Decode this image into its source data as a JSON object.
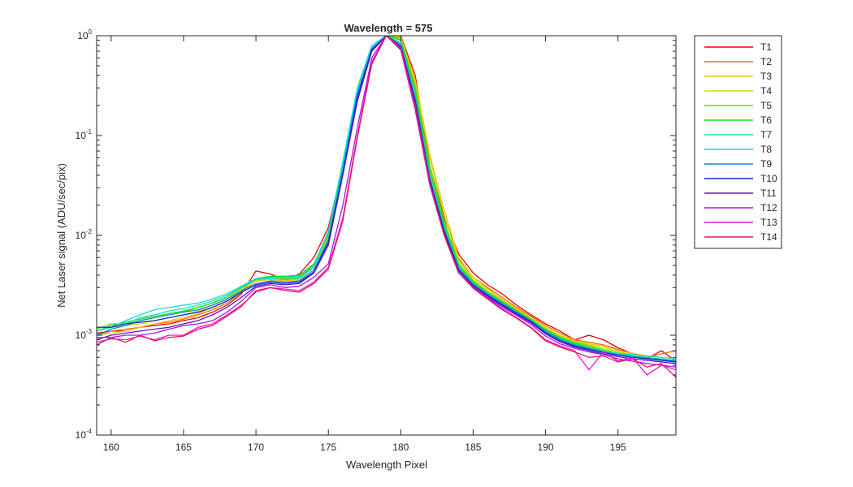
{
  "chart_data": {
    "type": "line",
    "title": "Wavelength = 575",
    "xlabel": "Wavelength Pixel",
    "ylabel": "Net Laser signal  (ADU/sec/pix)",
    "xlim": [
      159,
      199
    ],
    "ylim": [
      0.0001,
      1
    ],
    "yscale": "log",
    "grid": false,
    "legend_position": "outside-top-right",
    "xticks": [
      160,
      165,
      170,
      175,
      180,
      185,
      190,
      195
    ],
    "xtick_labels": [
      "160",
      "165",
      "170",
      "175",
      "180",
      "185",
      "190",
      "195"
    ],
    "yticks": [
      0.0001,
      0.001,
      0.01,
      0.1,
      1
    ],
    "ytick_labels": [
      {
        "base": "10",
        "exp": "-4"
      },
      {
        "base": "10",
        "exp": "-3"
      },
      {
        "base": "10",
        "exp": "-2"
      },
      {
        "base": "10",
        "exp": "-1"
      },
      {
        "base": "10",
        "exp": "0"
      }
    ],
    "x": [
      159,
      160,
      161,
      162,
      163,
      164,
      165,
      166,
      167,
      168,
      169,
      170,
      171,
      172,
      173,
      174,
      175,
      176,
      177,
      178,
      179,
      180,
      181,
      182,
      183,
      184,
      185,
      186,
      187,
      188,
      189,
      190,
      191,
      192,
      193,
      194,
      195,
      196,
      197,
      198,
      199
    ],
    "series": [
      {
        "name": "T1",
        "color": "#e60000",
        "values": [
          0.00105,
          0.0011,
          0.0011,
          0.0012,
          0.00125,
          0.0013,
          0.0014,
          0.0015,
          0.0017,
          0.002,
          0.0026,
          0.0044,
          0.0041,
          0.0036,
          0.0041,
          0.006,
          0.012,
          0.05,
          0.26,
          0.72,
          1.0,
          1.0,
          0.4,
          0.05,
          0.015,
          0.0065,
          0.0042,
          0.0032,
          0.0026,
          0.002,
          0.0016,
          0.0013,
          0.0011,
          0.0009,
          0.001,
          0.0009,
          0.00075,
          0.00065,
          0.00058,
          0.0007,
          0.00055
        ]
      },
      {
        "name": "T2",
        "color": "#ed6d0c",
        "values": [
          0.001,
          0.0011,
          0.00115,
          0.0012,
          0.0013,
          0.00135,
          0.00145,
          0.0016,
          0.0018,
          0.0021,
          0.0027,
          0.0036,
          0.0038,
          0.0037,
          0.0038,
          0.005,
          0.01,
          0.045,
          0.24,
          0.7,
          1.0,
          0.95,
          0.32,
          0.045,
          0.013,
          0.0058,
          0.0038,
          0.003,
          0.0024,
          0.0019,
          0.00155,
          0.00125,
          0.00105,
          0.0009,
          0.00085,
          0.0008,
          0.00072,
          0.00065,
          0.0006,
          0.00065,
          0.0007
        ]
      },
      {
        "name": "T3",
        "color": "#f2c40f",
        "values": [
          0.001,
          0.00105,
          0.0011,
          0.0012,
          0.0013,
          0.0014,
          0.0015,
          0.00165,
          0.0019,
          0.0022,
          0.0028,
          0.0035,
          0.0036,
          0.0035,
          0.0036,
          0.0048,
          0.0095,
          0.045,
          0.25,
          0.72,
          1.0,
          0.98,
          0.36,
          0.065,
          0.018,
          0.006,
          0.0038,
          0.0029,
          0.0023,
          0.00185,
          0.0015,
          0.0012,
          0.001,
          0.00088,
          0.00082,
          0.00078,
          0.0007,
          0.00066,
          0.00062,
          0.0006,
          0.00058
        ]
      },
      {
        "name": "T4",
        "color": "#b7e00d",
        "values": [
          0.0011,
          0.0012,
          0.00125,
          0.0013,
          0.0014,
          0.0015,
          0.0016,
          0.00175,
          0.002,
          0.0023,
          0.0029,
          0.0036,
          0.0037,
          0.0036,
          0.0037,
          0.0049,
          0.0098,
          0.048,
          0.26,
          0.74,
          1.0,
          0.96,
          0.34,
          0.06,
          0.016,
          0.0056,
          0.0036,
          0.0028,
          0.00225,
          0.0018,
          0.00148,
          0.00118,
          0.00098,
          0.00086,
          0.0008,
          0.00075,
          0.00068,
          0.00064,
          0.0006,
          0.00058,
          0.00056
        ]
      },
      {
        "name": "T5",
        "color": "#66dd0b",
        "values": [
          0.00115,
          0.0013,
          0.0013,
          0.0014,
          0.0015,
          0.0016,
          0.0017,
          0.0019,
          0.0021,
          0.0024,
          0.003,
          0.0036,
          0.0038,
          0.0037,
          0.0038,
          0.0048,
          0.0095,
          0.047,
          0.26,
          0.74,
          1.0,
          0.92,
          0.3,
          0.05,
          0.014,
          0.0052,
          0.0035,
          0.0027,
          0.0022,
          0.00178,
          0.00145,
          0.00115,
          0.00096,
          0.00085,
          0.00078,
          0.00072,
          0.00066,
          0.00062,
          0.00058,
          0.00056,
          0.00054
        ]
      },
      {
        "name": "T6",
        "color": "#14dd25",
        "values": [
          0.0011,
          0.00125,
          0.00135,
          0.00145,
          0.00155,
          0.00165,
          0.00175,
          0.0019,
          0.0021,
          0.0024,
          0.003,
          0.0037,
          0.0039,
          0.0039,
          0.004,
          0.0052,
          0.0105,
          0.05,
          0.27,
          0.75,
          1.0,
          0.9,
          0.28,
          0.045,
          0.013,
          0.005,
          0.0034,
          0.00265,
          0.00215,
          0.00175,
          0.00142,
          0.00112,
          0.00094,
          0.00083,
          0.00076,
          0.0007,
          0.00064,
          0.0006,
          0.00058,
          0.00056,
          0.00055
        ]
      },
      {
        "name": "T7",
        "color": "#12e49c",
        "values": [
          0.0011,
          0.0012,
          0.0013,
          0.0015,
          0.0016,
          0.00175,
          0.00185,
          0.002,
          0.0022,
          0.0025,
          0.0031,
          0.0037,
          0.0038,
          0.0038,
          0.0039,
          0.0051,
          0.011,
          0.052,
          0.28,
          0.76,
          1.0,
          0.85,
          0.25,
          0.04,
          0.012,
          0.0048,
          0.0033,
          0.0026,
          0.0021,
          0.0017,
          0.0014,
          0.0011,
          0.00092,
          0.00081,
          0.00074,
          0.00069,
          0.00066,
          0.00064,
          0.00062,
          0.0006,
          0.00058
        ]
      },
      {
        "name": "T8",
        "color": "#12d8ec",
        "values": [
          0.0011,
          0.0012,
          0.0014,
          0.0016,
          0.0018,
          0.0019,
          0.002,
          0.0021,
          0.0023,
          0.0026,
          0.0031,
          0.0036,
          0.0037,
          0.0036,
          0.0037,
          0.0048,
          0.011,
          0.055,
          0.3,
          0.8,
          1.0,
          0.8,
          0.22,
          0.035,
          0.011,
          0.0046,
          0.0032,
          0.00255,
          0.00205,
          0.00168,
          0.00138,
          0.00108,
          0.0009,
          0.0008,
          0.00073,
          0.00068,
          0.00064,
          0.00062,
          0.0006,
          0.00058,
          0.00056
        ]
      },
      {
        "name": "T9",
        "color": "#1487dd",
        "values": [
          0.001,
          0.00115,
          0.00125,
          0.0014,
          0.0015,
          0.0016,
          0.0017,
          0.0018,
          0.002,
          0.0023,
          0.0028,
          0.0033,
          0.0035,
          0.0034,
          0.0035,
          0.0045,
          0.009,
          0.045,
          0.26,
          0.74,
          1.0,
          0.82,
          0.24,
          0.038,
          0.0115,
          0.0047,
          0.00325,
          0.00258,
          0.00208,
          0.0017,
          0.0014,
          0.0011,
          0.00091,
          0.0008,
          0.00073,
          0.00068,
          0.00064,
          0.00061,
          0.00059,
          0.00057,
          0.00055
        ]
      },
      {
        "name": "T10",
        "color": "#1226c8",
        "values": [
          0.0012,
          0.0012,
          0.0013,
          0.00135,
          0.0014,
          0.0015,
          0.0016,
          0.0017,
          0.0019,
          0.0022,
          0.0027,
          0.0032,
          0.0034,
          0.0033,
          0.0034,
          0.0043,
          0.0085,
          0.042,
          0.24,
          0.72,
          1.0,
          0.78,
          0.22,
          0.036,
          0.011,
          0.0045,
          0.00315,
          0.0025,
          0.00202,
          0.00165,
          0.00136,
          0.00106,
          0.00088,
          0.00078,
          0.00072,
          0.00067,
          0.00063,
          0.0006,
          0.00058,
          0.00056,
          0.00054
        ]
      },
      {
        "name": "T11",
        "color": "#5914cc",
        "values": [
          0.0009,
          0.001,
          0.00105,
          0.0011,
          0.00115,
          0.0012,
          0.0013,
          0.0014,
          0.0016,
          0.0019,
          0.0024,
          0.0031,
          0.0033,
          0.0032,
          0.0033,
          0.0042,
          0.008,
          0.04,
          0.22,
          0.7,
          1.0,
          0.74,
          0.2,
          0.034,
          0.0105,
          0.0044,
          0.0031,
          0.00245,
          0.00198,
          0.00162,
          0.00133,
          0.00103,
          0.00086,
          0.00076,
          0.0007,
          0.00065,
          0.00061,
          0.00058,
          0.00056,
          0.00054,
          0.00052
        ]
      },
      {
        "name": "T12",
        "color": "#aa14e6",
        "values": [
          0.00095,
          0.00095,
          0.001,
          0.001,
          0.00105,
          0.00115,
          0.00125,
          0.0013,
          0.0014,
          0.0017,
          0.0022,
          0.003,
          0.0032,
          0.003,
          0.0031,
          0.0038,
          0.0052,
          0.02,
          0.12,
          0.6,
          1.0,
          0.72,
          0.18,
          0.032,
          0.01,
          0.0042,
          0.003,
          0.0024,
          0.00192,
          0.00158,
          0.00128,
          0.00098,
          0.00082,
          0.00074,
          0.00068,
          0.00064,
          0.00058,
          0.00055,
          0.00052,
          0.0005,
          0.00048
        ]
      },
      {
        "name": "T13",
        "color": "#ec14d2",
        "values": [
          0.00085,
          0.00092,
          0.0009,
          0.00098,
          0.0009,
          0.001,
          0.001,
          0.0012,
          0.0013,
          0.0016,
          0.002,
          0.0027,
          0.003,
          0.0029,
          0.0028,
          0.0034,
          0.0048,
          0.015,
          0.1,
          0.55,
          1.0,
          0.75,
          0.19,
          0.033,
          0.01,
          0.0042,
          0.003,
          0.00235,
          0.00185,
          0.0015,
          0.0012,
          0.0009,
          0.00078,
          0.0007,
          0.00045,
          0.00068,
          0.00055,
          0.0006,
          0.0004,
          0.0005,
          0.00045
        ]
      },
      {
        "name": "T14",
        "color": "#e81464",
        "values": [
          0.0008,
          0.00095,
          0.00085,
          0.001,
          0.00088,
          0.00095,
          0.00098,
          0.00115,
          0.00125,
          0.00155,
          0.00195,
          0.0028,
          0.003,
          0.0028,
          0.0027,
          0.0033,
          0.0046,
          0.014,
          0.095,
          0.52,
          1.0,
          0.76,
          0.2,
          0.034,
          0.01,
          0.0042,
          0.00295,
          0.0023,
          0.0018,
          0.00148,
          0.00118,
          0.00088,
          0.00076,
          0.00068,
          0.0006,
          0.00062,
          0.00054,
          0.00058,
          0.00048,
          0.00052,
          0.00038
        ]
      }
    ]
  }
}
